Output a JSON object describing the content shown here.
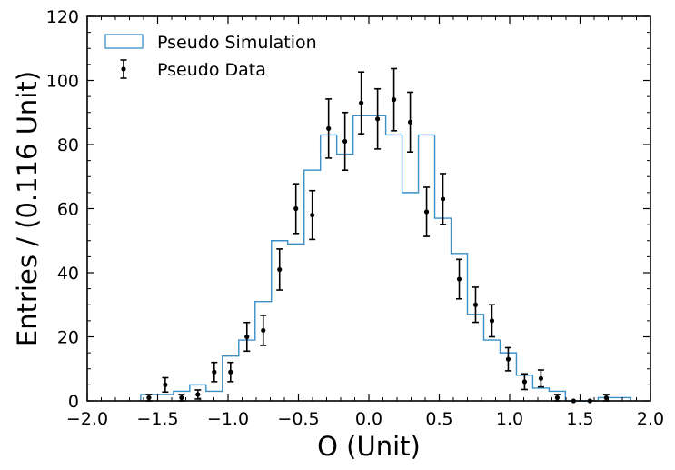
{
  "chart_data": {
    "type": "histogram_with_errorbars",
    "xlabel": "O (Unit)",
    "ylabel": "Entries / (0.116 Unit)",
    "xlim": [
      -2.0,
      2.0
    ],
    "ylim": [
      0,
      120
    ],
    "xticks": [
      "−2.0",
      "−1.5",
      "−1.0",
      "−0.5",
      "0.0",
      "0.5",
      "1.0",
      "1.5",
      "2.0"
    ],
    "xtick_values": [
      -2.0,
      -1.5,
      -1.0,
      -0.5,
      0.0,
      0.5,
      1.0,
      1.5,
      2.0
    ],
    "yticks": [
      "0",
      "20",
      "40",
      "60",
      "80",
      "100",
      "120"
    ],
    "ytick_values": [
      0,
      20,
      40,
      60,
      80,
      100,
      120
    ],
    "legend": {
      "position": "top-left",
      "entries": [
        {
          "label": "Pseudo Simulation",
          "kind": "step",
          "color": "#3a8fc9"
        },
        {
          "label": "Pseudo Data",
          "kind": "errorbar",
          "color": "#000000"
        }
      ]
    },
    "simulation": {
      "name": "Pseudo Simulation",
      "color": "#3a8fc9",
      "bin_start": -1.62,
      "bin_width": 0.116,
      "counts": [
        2,
        2,
        3,
        5,
        3,
        14,
        19,
        31,
        50,
        49,
        72,
        83,
        77,
        89,
        89,
        83,
        65,
        83,
        57,
        46,
        27,
        19,
        15,
        8,
        4,
        3,
        0,
        0,
        1,
        1
      ]
    },
    "data": {
      "name": "Pseudo Data",
      "color": "#000000",
      "x": [
        -1.562,
        -1.446,
        -1.33,
        -1.214,
        -1.098,
        -0.982,
        -0.866,
        -0.75,
        -0.634,
        -0.518,
        -0.402,
        -0.286,
        -0.17,
        -0.054,
        0.062,
        0.178,
        0.294,
        0.41,
        0.526,
        0.642,
        0.758,
        0.874,
        0.99,
        1.106,
        1.222,
        1.338,
        1.454,
        1.57,
        1.686
      ],
      "y": [
        1,
        5,
        1,
        2,
        9,
        9,
        20,
        22,
        41,
        60,
        58,
        85,
        81,
        93,
        88,
        94,
        87,
        59,
        63,
        38,
        30,
        25,
        13,
        6,
        7,
        1,
        0,
        0,
        1
      ]
    }
  }
}
